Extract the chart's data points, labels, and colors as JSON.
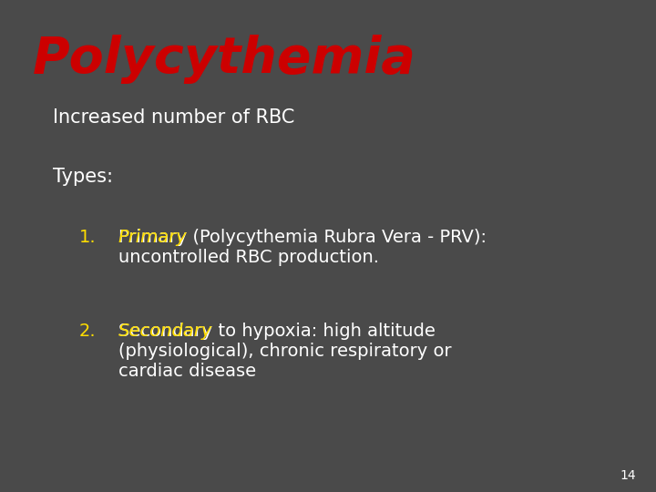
{
  "title": "Polycythemia",
  "title_color": "#cc0000",
  "subtitle": "Increased number of RBC",
  "subtitle_color": "#ffffff",
  "types_label": "Types:",
  "types_color": "#ffffff",
  "bg_color": "#4a4a4a",
  "ellipse_color": "#7a7a7a",
  "item1_number": "1.",
  "item1_number_color": "#ffdd00",
  "item1_keyword": "Primary",
  "item1_keyword_color": "#ffdd00",
  "item1_full": "Primary (Polycythemia Rubra Vera - PRV):\nuncontrolled RBC production.",
  "item1_rest_color": "#ffffff",
  "item2_number": "2.",
  "item2_number_color": "#ffdd00",
  "item2_keyword": "Secondary",
  "item2_keyword_color": "#ffdd00",
  "item2_full": "Secondary to hypoxia: high altitude\n(physiological), chronic respiratory or\ncardiac disease",
  "item2_rest_color": "#ffffff",
  "page_number": "14",
  "page_number_color": "#ffffff",
  "figsize": [
    7.2,
    5.4
  ],
  "dpi": 100
}
